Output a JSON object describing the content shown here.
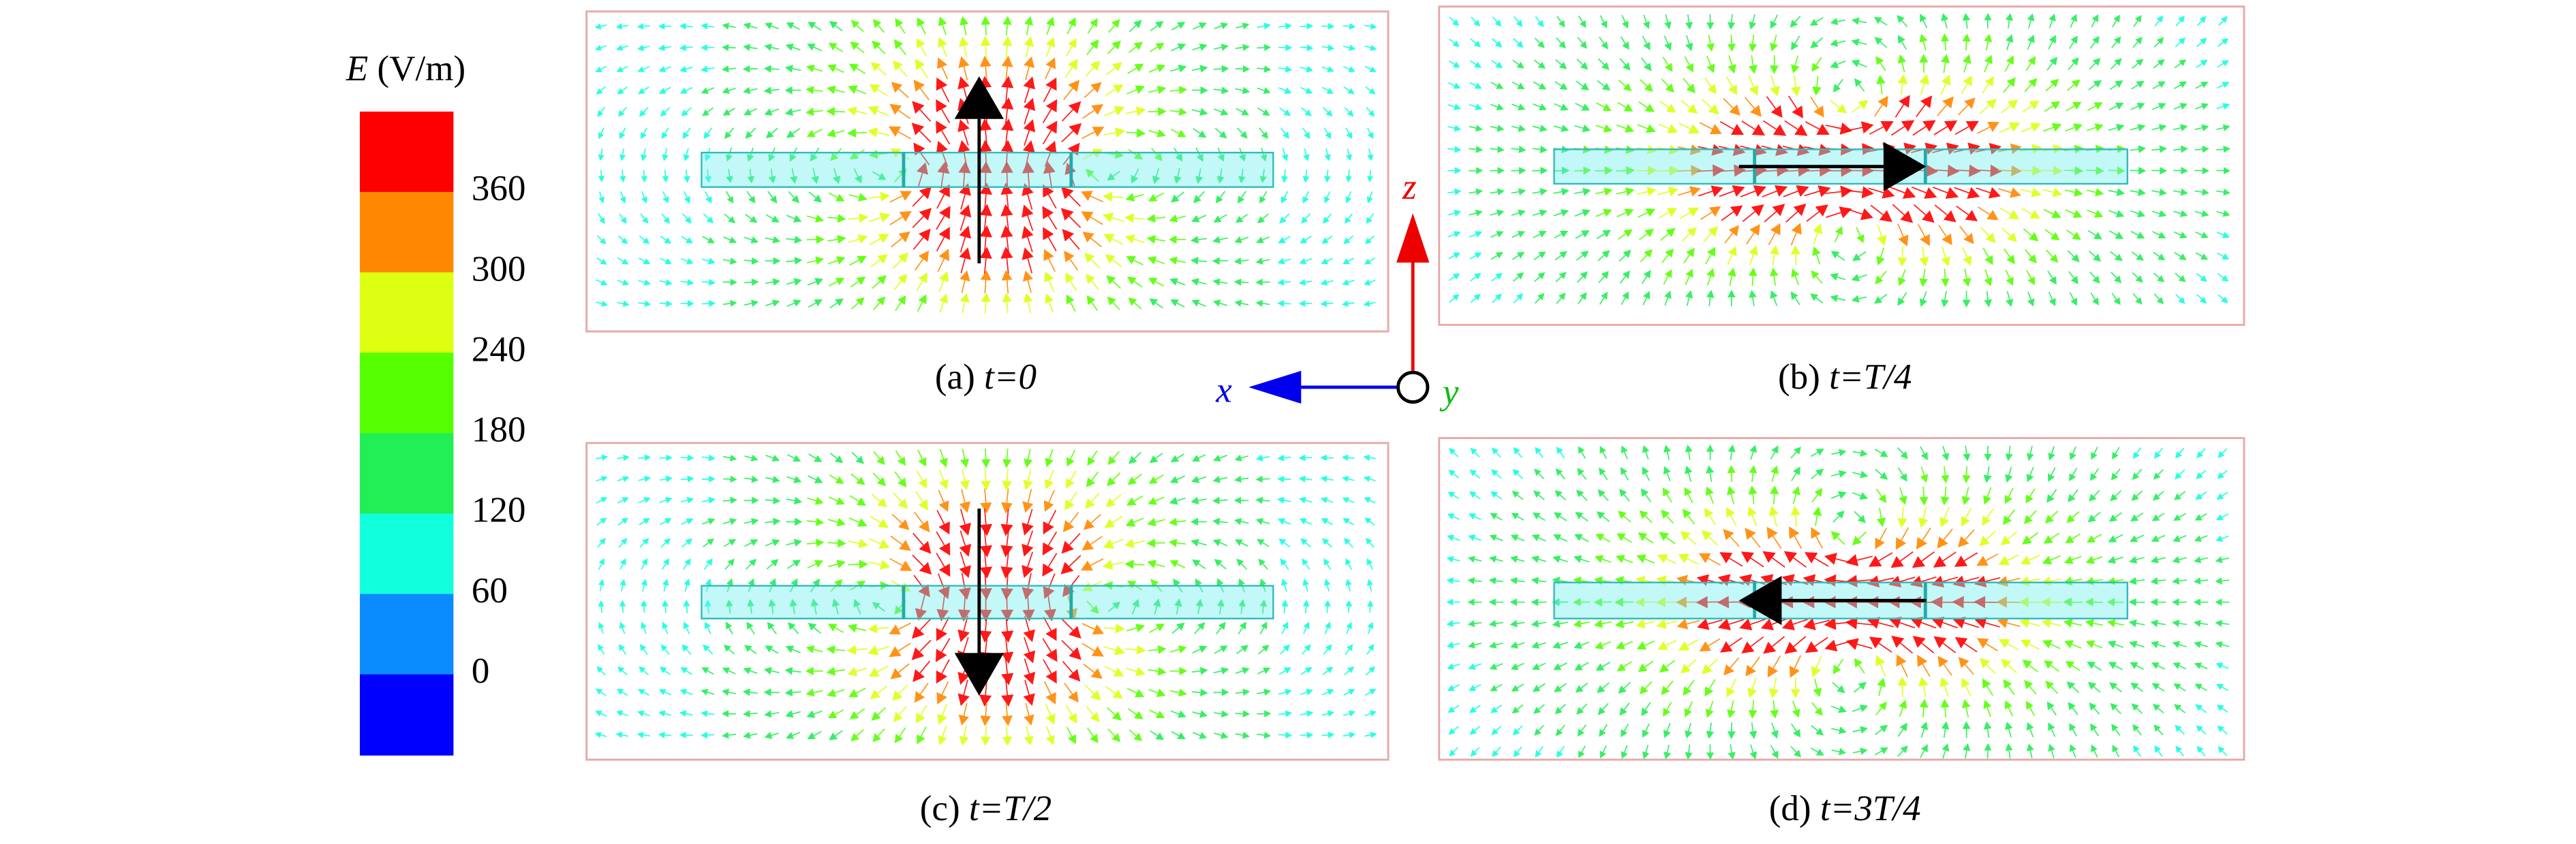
{
  "colorbar": {
    "quantity": "E",
    "unit": "(V/m)",
    "ticks": [
      360,
      300,
      240,
      180,
      120,
      60,
      0
    ],
    "colors": [
      "#ff0000",
      "#ff8800",
      "#ddff11",
      "#55ff00",
      "#22ee55",
      "#11ffdd",
      "#0a8cff",
      "#0000ff"
    ]
  },
  "panels": [
    {
      "label": "(a)",
      "time": "t=0"
    },
    {
      "label": "(b)",
      "time": "t=T/4"
    },
    {
      "label": "(c)",
      "time": "t=T/2"
    },
    {
      "label": "(d)",
      "time": "t=3T/4"
    }
  ],
  "axes": {
    "x": "x",
    "y": "y",
    "z": "z"
  }
}
